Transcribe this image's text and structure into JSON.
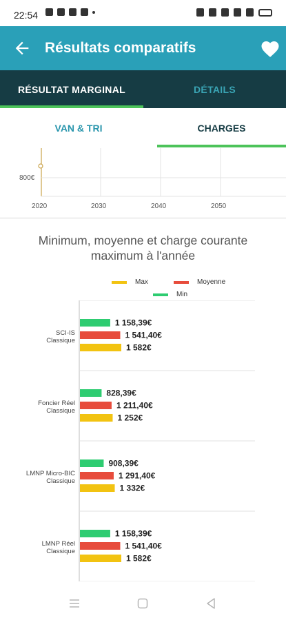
{
  "status_bar": {
    "time": "22:54"
  },
  "app_bar": {
    "title": "Résultats comparatifs"
  },
  "tabs_primary": [
    {
      "label": "RÉSULTAT MARGINAL",
      "active": true
    },
    {
      "label": "DÉTAILS",
      "active": false
    }
  ],
  "tabs_secondary": [
    {
      "label": "VAN & TRI",
      "active": false
    },
    {
      "label": "CHARGES",
      "active": true
    }
  ],
  "timeline_chart": {
    "y_label": "800€",
    "x_ticks": [
      "2020",
      "2030",
      "2040",
      "2050"
    ]
  },
  "chart_title": {
    "line1": "Minimum, moyenne et charge courante",
    "line2": "maximum à l'année"
  },
  "colors": {
    "max": "#f2c311",
    "moyenne": "#e74c3c",
    "min": "#2ecc71",
    "accent": "#2aa0b8",
    "tab_bg": "#163c44"
  },
  "chart_data": {
    "type": "bar",
    "orientation": "horizontal",
    "title": "Minimum, moyenne et charge courante maximum à l'année",
    "legend": [
      "Max",
      "Moyenne",
      "Min"
    ],
    "categories": [
      [
        "SCI-IS",
        "Classique"
      ],
      [
        "Foncier Réel",
        "Classique"
      ],
      [
        "LMNP Micro-BIC",
        "Classique"
      ],
      [
        "LMNP Réel",
        "Classique"
      ]
    ],
    "series": [
      {
        "name": "Min",
        "color": "#2ecc71",
        "values": [
          1158.39,
          828.39,
          908.39,
          1158.39
        ],
        "labels": [
          "1 158,39€",
          "828,39€",
          "908,39€",
          "1 158,39€"
        ]
      },
      {
        "name": "Moyenne",
        "color": "#e74c3c",
        "values": [
          1541.4,
          1211.4,
          1291.4,
          1541.4
        ],
        "labels": [
          "1 541,40€",
          "1 211,40€",
          "1 291,40€",
          "1 541,40€"
        ]
      },
      {
        "name": "Max",
        "color": "#f2c311",
        "values": [
          1582,
          1252,
          1332,
          1582
        ],
        "labels": [
          "1 582€",
          "1 252€",
          "1 332€",
          "1 582€"
        ]
      }
    ],
    "xlim": [
      0,
      1582
    ]
  }
}
